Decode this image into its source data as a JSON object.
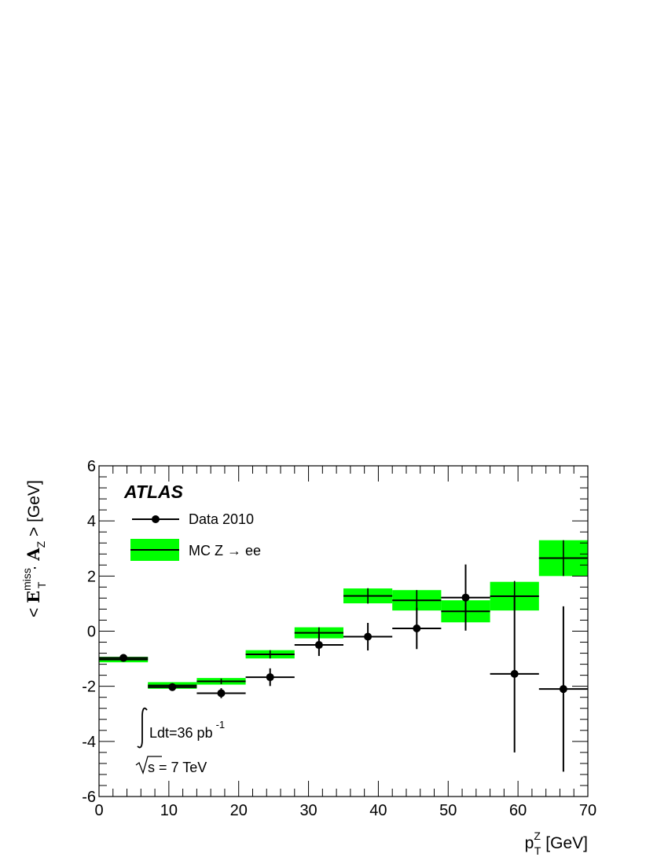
{
  "chart_data": {
    "type": "scatter",
    "brand_label": "ATLAS",
    "xlabel": {
      "base": "p",
      "sub": "T",
      "sup": "Z",
      "unit": " [GeV]"
    },
    "ylabel": {
      "prefix": "< ",
      "e": "E",
      "e_sup": "miss",
      "e_sub": "T",
      "dot": "· ",
      "a": "A",
      "a_sub": "Z",
      "suffix": " > [GeV]"
    },
    "xlim": [
      0,
      70
    ],
    "ylim": [
      -6,
      6
    ],
    "xticks": [
      "0",
      "10",
      "20",
      "30",
      "40",
      "50",
      "60",
      "70"
    ],
    "yticks": [
      "-6",
      "-4",
      "-2",
      "0",
      "2",
      "4",
      "6"
    ],
    "grid": false,
    "legend_position": "top-left",
    "series": [
      {
        "name": "Data 2010",
        "kind": "points-with-errors",
        "color": "#000000",
        "x": [
          3.5,
          10.5,
          17.5,
          24.5,
          31.5,
          38.5,
          45.5,
          52.5,
          59.5,
          66.5
        ],
        "xerr": 3.5,
        "y": [
          -0.97,
          -2.03,
          -2.25,
          -1.67,
          -0.5,
          -0.2,
          0.1,
          1.22,
          -1.55,
          -2.1
        ],
        "yerr": [
          0.06,
          0.1,
          0.18,
          0.32,
          0.4,
          0.5,
          0.75,
          1.2,
          2.85,
          3.0
        ]
      },
      {
        "name": "MC Z → ee",
        "kind": "bands",
        "color": "#00ff00",
        "x": [
          3.5,
          10.5,
          17.5,
          24.5,
          31.5,
          38.5,
          45.5,
          52.5,
          59.5,
          66.5
        ],
        "xerr": 3.5,
        "y": [
          -1.03,
          -1.97,
          -1.82,
          -0.84,
          -0.06,
          1.28,
          1.12,
          0.72,
          1.27,
          2.65
        ],
        "band_half": [
          0.1,
          0.12,
          0.12,
          0.15,
          0.2,
          0.27,
          0.37,
          0.4,
          0.52,
          0.65
        ],
        "mcstat": [
          0.05,
          0.08,
          0.1,
          0.15,
          0.2,
          0.28,
          0.37,
          0.5,
          0.55,
          0.65
        ]
      }
    ],
    "annotations": {
      "lumi": {
        "text": "Ldt=36 pb",
        "sup": "-1"
      },
      "energy": {
        "text": "s = 7 TeV"
      }
    }
  }
}
